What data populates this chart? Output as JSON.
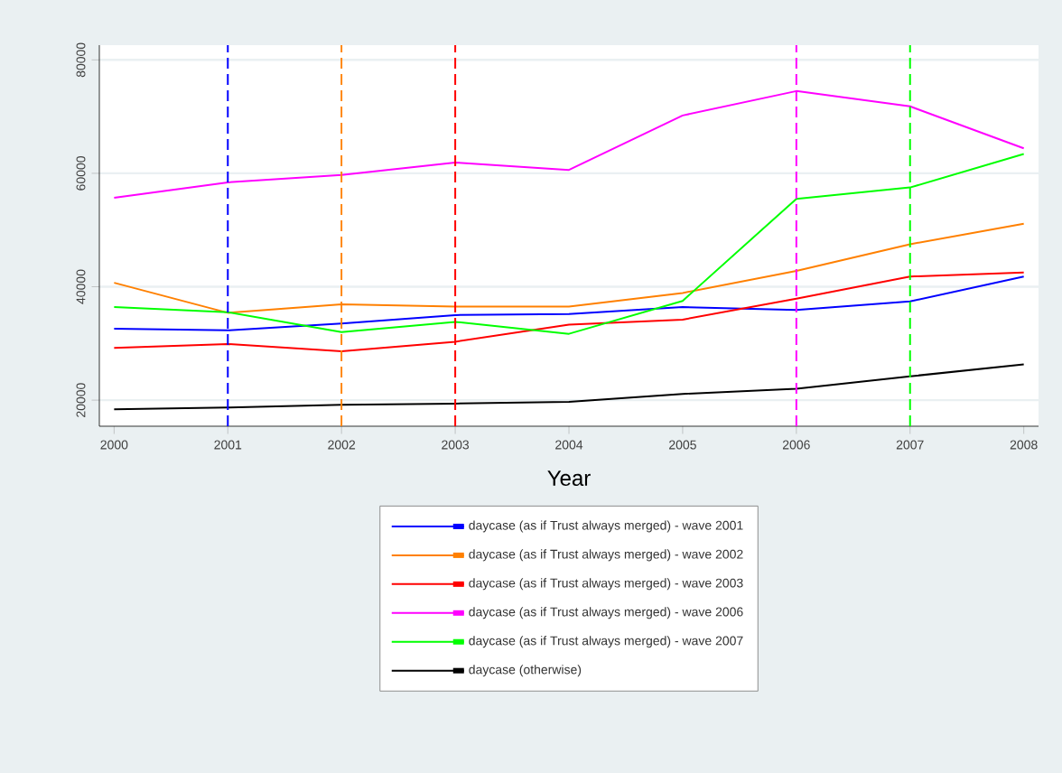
{
  "chart_data": {
    "type": "line",
    "xlabel": "Year",
    "x": [
      2000,
      2001,
      2002,
      2003,
      2004,
      2005,
      2006,
      2007,
      2008
    ],
    "xlim": [
      1999.87,
      2008.13
    ],
    "xticks": [
      2000,
      2001,
      2002,
      2003,
      2004,
      2005,
      2006,
      2007,
      2008
    ],
    "ylim": [
      15400,
      82600
    ],
    "yticks": [
      20000,
      40000,
      60000,
      80000
    ],
    "grid": "y",
    "legend": "bottom",
    "marker": "none",
    "line_style": "solid",
    "series": [
      {
        "name": "daycase (as if Trust always merged) - wave 2001",
        "color": "#0000ff",
        "values": [
          32600,
          32300,
          33500,
          35000,
          35200,
          36400,
          35900,
          37400,
          41800
        ]
      },
      {
        "name": "daycase (as if Trust always merged) - wave 2002",
        "color": "#ff8000",
        "values": [
          40700,
          35400,
          36900,
          36500,
          36500,
          38900,
          42800,
          47500,
          51100
        ]
      },
      {
        "name": "daycase (as if Trust always merged) - wave 2003",
        "color": "#ff0000",
        "values": [
          29200,
          29900,
          28600,
          30300,
          33300,
          34200,
          37900,
          41800,
          42500
        ]
      },
      {
        "name": "daycase (as if Trust always merged) - wave 2006",
        "color": "#ff00ff",
        "values": [
          55700,
          58400,
          59700,
          61900,
          60600,
          70200,
          74500,
          71800,
          64400
        ]
      },
      {
        "name": "daycase (as if Trust always merged) - wave 2007",
        "color": "#00ff00",
        "values": [
          36400,
          35500,
          32000,
          33800,
          31700,
          37500,
          55500,
          57500,
          63400
        ]
      },
      {
        "name": "daycase (otherwise)",
        "color": "#000000",
        "values": [
          18400,
          18700,
          19200,
          19400,
          19700,
          21100,
          22000,
          24200,
          26300
        ]
      }
    ],
    "ref_lines": [
      {
        "axis": "x",
        "value": 2001,
        "color": "#0000ff",
        "line_style": "dashed"
      },
      {
        "axis": "x",
        "value": 2002,
        "color": "#ff8000",
        "line_style": "dashed"
      },
      {
        "axis": "x",
        "value": 2003,
        "color": "#ff0000",
        "line_style": "dashed"
      },
      {
        "axis": "x",
        "value": 2006,
        "color": "#ff00ff",
        "line_style": "dashed"
      },
      {
        "axis": "x",
        "value": 2007,
        "color": "#00ff00",
        "line_style": "dashed"
      }
    ]
  }
}
